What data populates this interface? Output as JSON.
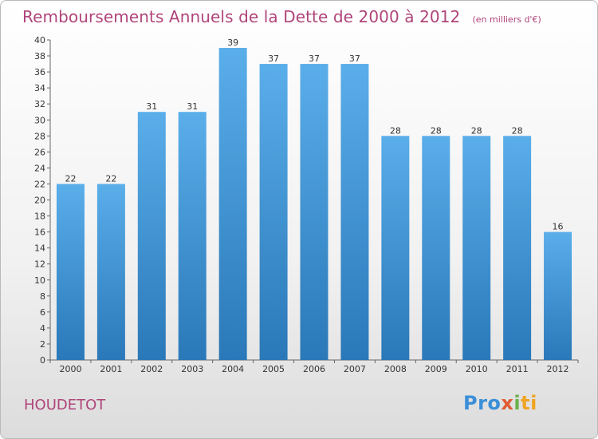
{
  "title": "Remboursements Annuels de la Dette de 2000 à 2012",
  "subtitle": "(en milliers d'€)",
  "commune": "HOUDETOT",
  "logo": {
    "part1": "Pro",
    "part2": "x",
    "part3": "i",
    "part4": "ti"
  },
  "colors": {
    "title": "#b0457a",
    "bar_top": "#5aaeea",
    "bar_bottom": "#2a78b8"
  },
  "chart_data": {
    "type": "bar",
    "categories": [
      "2000",
      "2001",
      "2002",
      "2003",
      "2004",
      "2005",
      "2006",
      "2007",
      "2008",
      "2009",
      "2010",
      "2011",
      "2012"
    ],
    "values": [
      22,
      22,
      31,
      31,
      39,
      37,
      37,
      37,
      28,
      28,
      28,
      28,
      16
    ],
    "ylim": [
      0,
      40
    ],
    "yticks": [
      0,
      2,
      4,
      6,
      8,
      10,
      12,
      14,
      16,
      18,
      20,
      22,
      24,
      26,
      28,
      30,
      32,
      34,
      36,
      38,
      40
    ],
    "grid": false,
    "xlabel": "",
    "ylabel": ""
  }
}
